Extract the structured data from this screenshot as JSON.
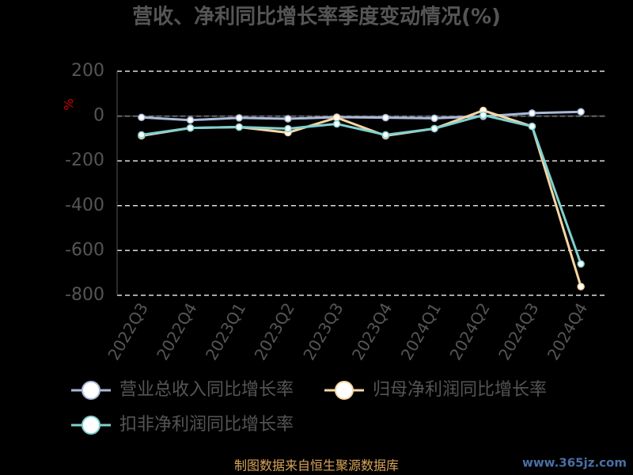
{
  "chart_data": {
    "type": "line",
    "title": "营收、净利同比增长率季度变动情况(%)",
    "y_label": "%",
    "categories": [
      "2022Q3",
      "2022Q4",
      "2023Q1",
      "2023Q2",
      "2023Q3",
      "2023Q4",
      "2024Q1",
      "2024Q2",
      "2024Q3",
      "2024Q4"
    ],
    "series": [
      {
        "name": "营业总收入同比增长率",
        "color": "#a9b9da",
        "values": [
          -6,
          -18,
          -8,
          -12,
          -5,
          -7,
          -10,
          -1,
          13,
          19
        ]
      },
      {
        "name": "归母净利润同比增长率",
        "color": "#f7d6a3",
        "values": [
          -88,
          -53,
          -49,
          -74,
          -7,
          -88,
          -56,
          25,
          -46,
          -761
        ]
      },
      {
        "name": "扣非净利润同比增长率",
        "color": "#80d0d0",
        "values": [
          -84,
          -53,
          -49,
          -56,
          -35,
          -84,
          -56,
          4,
          -46,
          -660
        ]
      }
    ],
    "ylim": [
      -800,
      200
    ],
    "yticks": [
      200,
      0,
      -200,
      -400,
      -600,
      -800
    ],
    "grid": true,
    "source": "制图数据来自恒生聚源数据库",
    "watermark": "www.365jz.com"
  }
}
